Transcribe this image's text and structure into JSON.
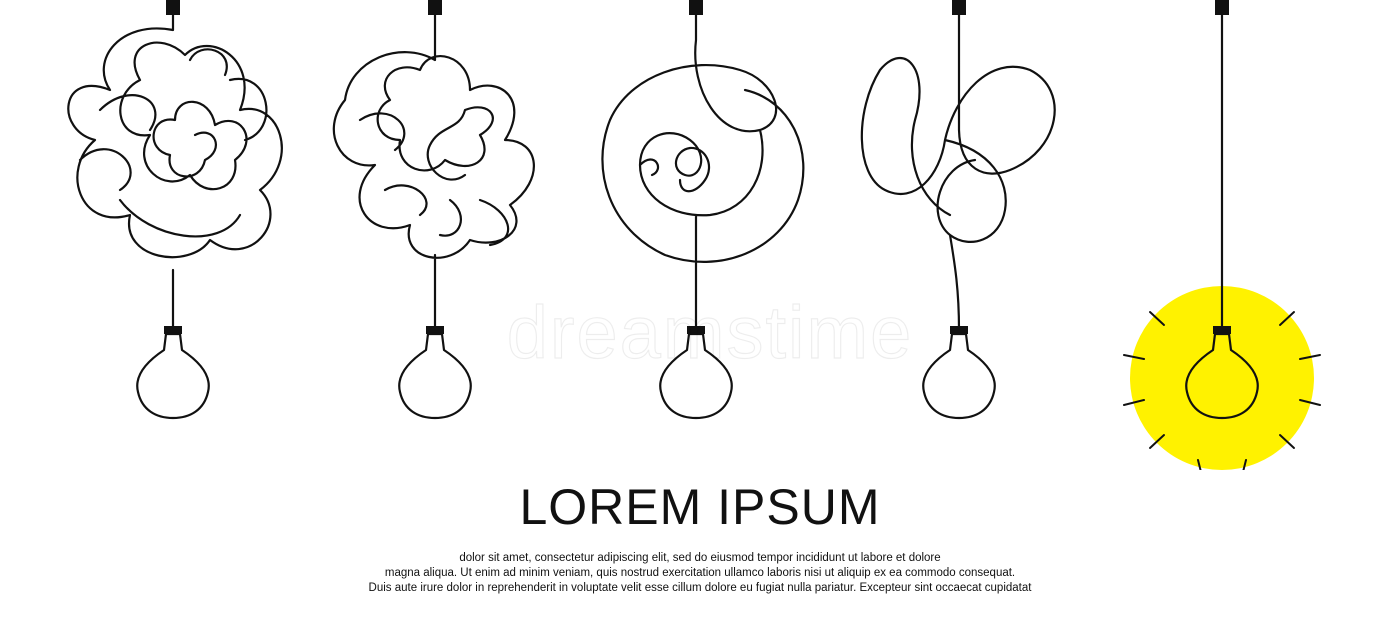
{
  "watermark": "dreamstime",
  "headline": "LOREM IPSUM",
  "body_lines": [
    "dolor sit amet, consectetur adipiscing elit, sed do eiusmod tempor incididunt ut labore et dolore",
    "magna aliqua. Ut enim ad minim veniam, quis nostrud exercitation ullamco laboris nisi ut aliquip ex ea commodo consequat.",
    "Duis aute irure dolor in reprehenderit in voluptate velit esse cillum dolore eu fugiat nulla pariatur. Excepteur sint occaecat cupidatat"
  ],
  "colors": {
    "line": "#111111",
    "glow": "#fff200",
    "background": "#ffffff"
  },
  "illustration": {
    "bulbs": [
      {
        "name": "bulb-tangled-heavy",
        "lit": false
      },
      {
        "name": "bulb-tangled-medium",
        "lit": false
      },
      {
        "name": "bulb-spiral",
        "lit": false
      },
      {
        "name": "bulb-loops",
        "lit": false
      },
      {
        "name": "bulb-lit-idea",
        "lit": true
      }
    ]
  }
}
